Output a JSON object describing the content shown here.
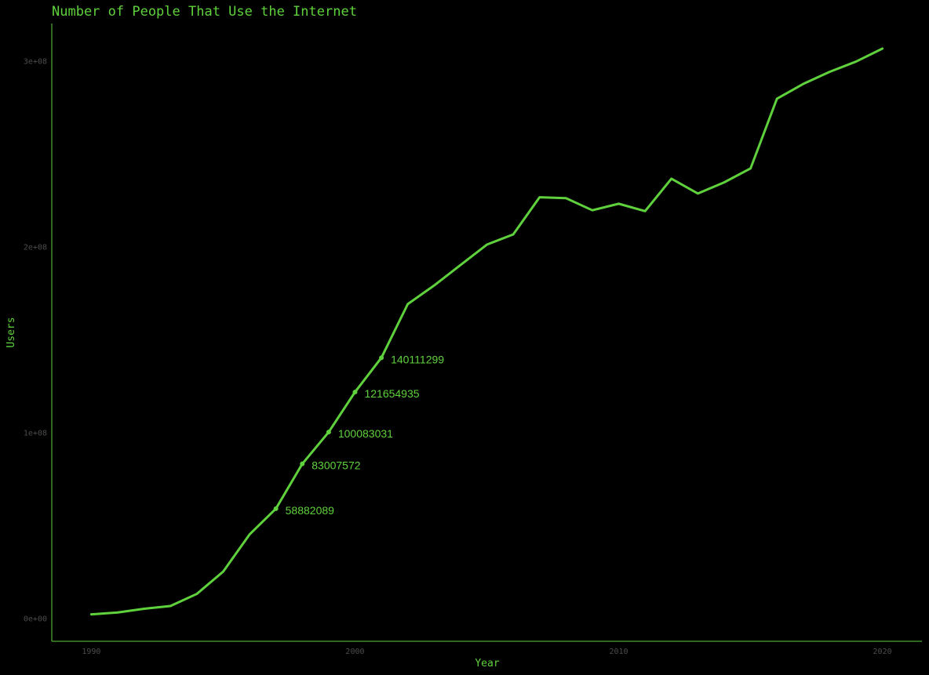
{
  "colors": {
    "background": "#000000",
    "accent": "#5fd13c",
    "tick_text": "#4d4d4d"
  },
  "chart_data": {
    "type": "line",
    "title": "Number of People That Use the Internet",
    "xlabel": "Year",
    "ylabel": "Users",
    "xlim": [
      1988.5,
      2021.5
    ],
    "ylim": [
      -12500000,
      320000000
    ],
    "x_ticks": [
      1990,
      2000,
      2010,
      2020
    ],
    "x_tick_labels": [
      "1990",
      "2000",
      "2010",
      "2020"
    ],
    "y_ticks": [
      0,
      100000000,
      200000000,
      300000000
    ],
    "y_tick_labels": [
      "0e+00",
      "1e+08",
      "2e+08",
      "3e+08"
    ],
    "grid": false,
    "legend": "none",
    "series": [
      {
        "x": [
          1990,
          1991,
          1992,
          1993,
          1994,
          1995,
          1996,
          1997,
          1998,
          1999,
          2000,
          2001,
          2002,
          2003,
          2004,
          2005,
          2006,
          2007,
          2008,
          2009,
          2010,
          2011,
          2012,
          2013,
          2014,
          2015,
          2016,
          2017,
          2018,
          2019,
          2020
        ],
        "y": [
          2000000,
          3000000,
          5000000,
          6500000,
          13000000,
          25000000,
          45000000,
          58882089,
          83007572,
          100083031,
          121654935,
          140111299,
          169000000,
          179000000,
          190000000,
          201000000,
          206500000,
          226500000,
          226000000,
          219500000,
          223000000,
          219000000,
          236500000,
          228500000,
          234500000,
          242000000,
          279500000,
          287500000,
          294000000,
          299500000,
          306500000
        ]
      }
    ],
    "annotations": [
      {
        "x": 1997,
        "y": 58882089,
        "label": "58882089"
      },
      {
        "x": 1998,
        "y": 83007572,
        "label": "83007572"
      },
      {
        "x": 1999,
        "y": 100083031,
        "label": "100083031"
      },
      {
        "x": 2000,
        "y": 121654935,
        "label": "121654935"
      },
      {
        "x": 2001,
        "y": 140111299,
        "label": "140111299"
      }
    ]
  }
}
